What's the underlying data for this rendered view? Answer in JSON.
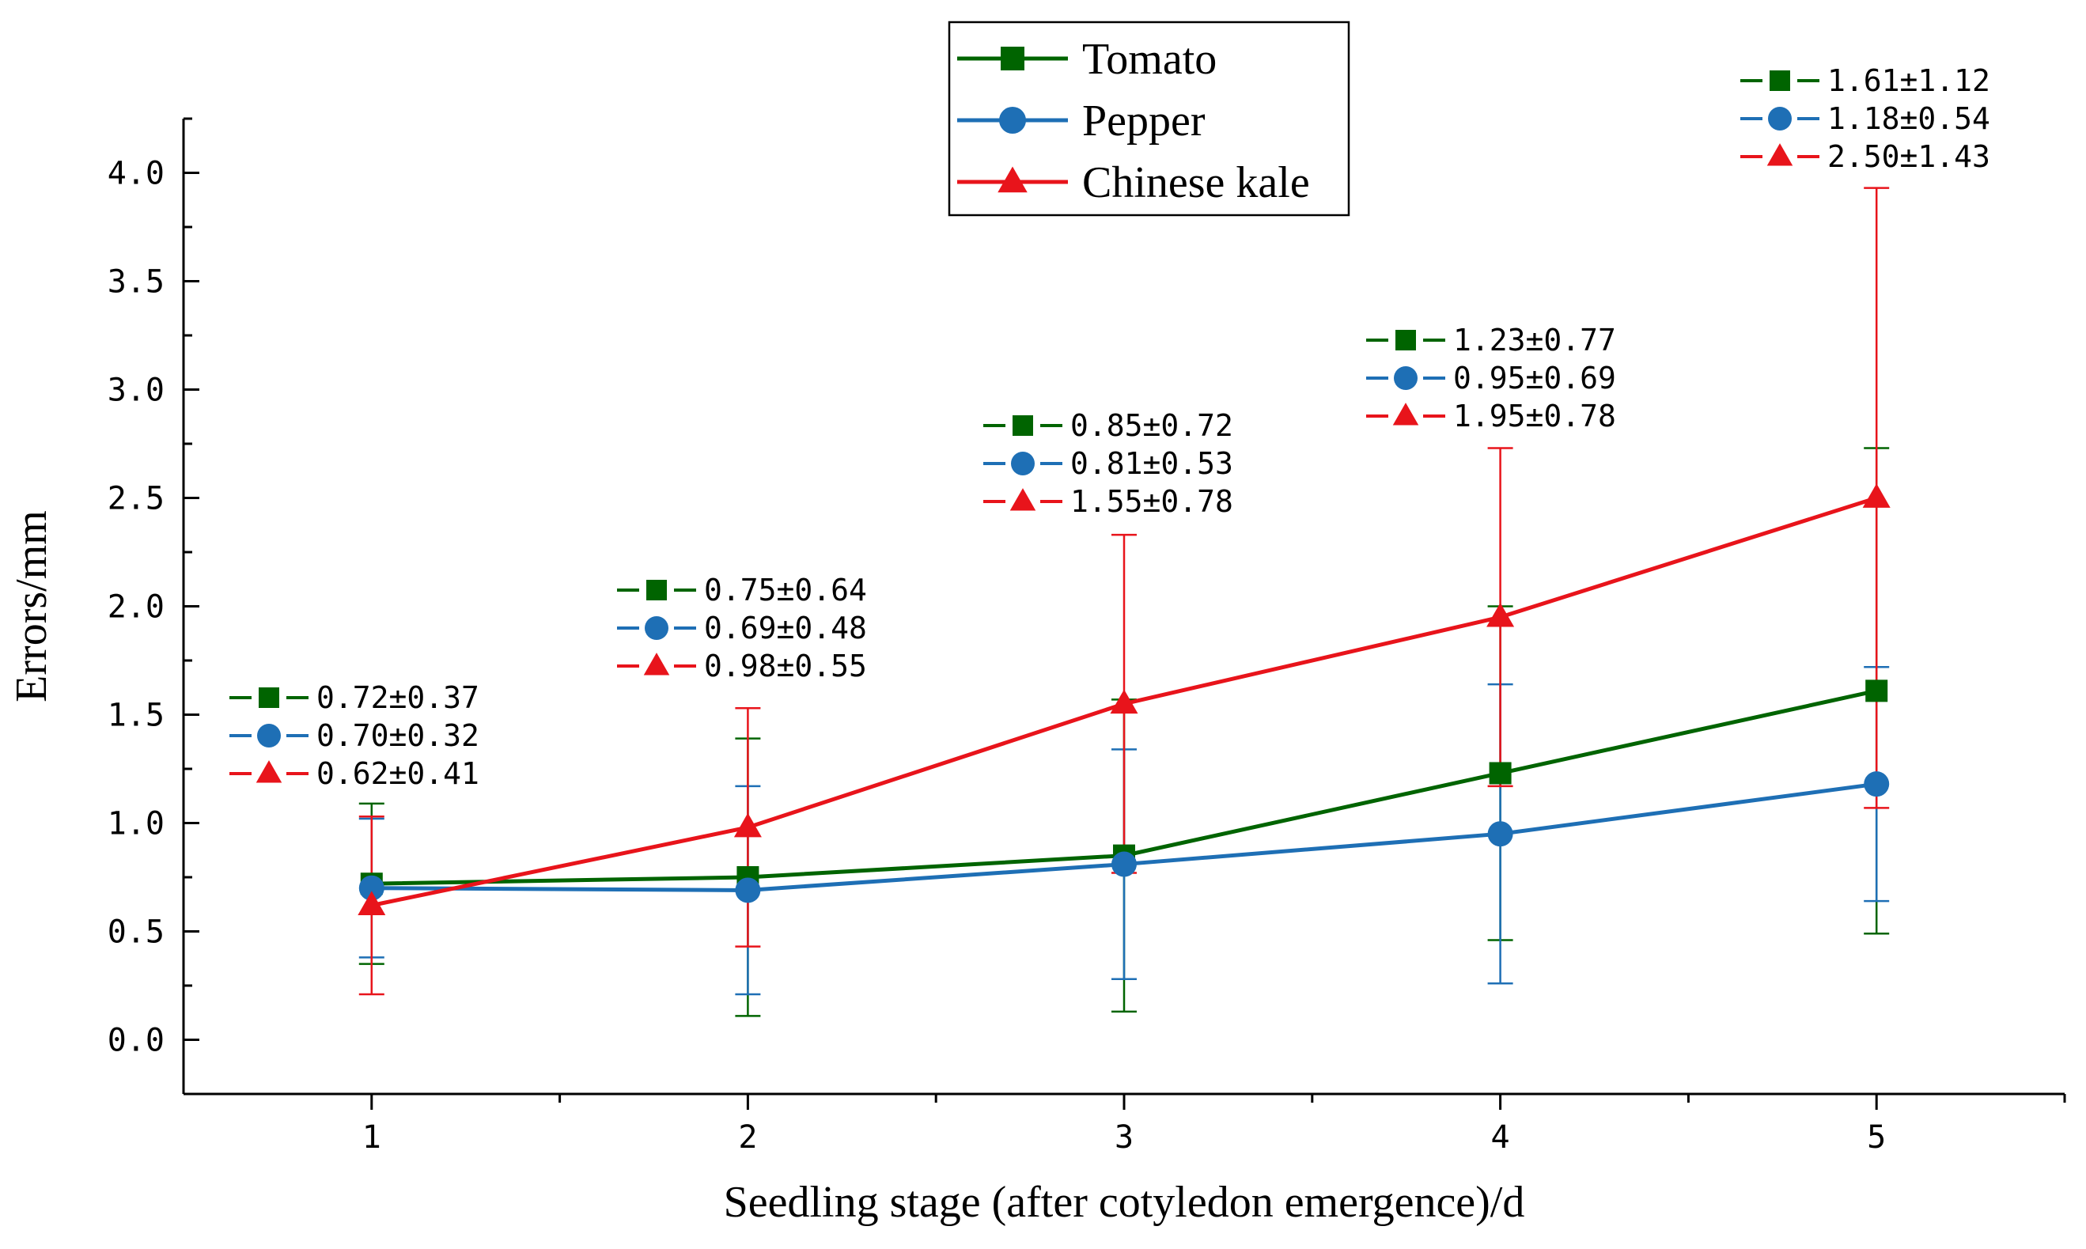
{
  "chart_data": {
    "type": "line",
    "title": "",
    "xlabel": "Seedling stage (after cotyledon emergence)/d",
    "ylabel": "Errors/mm",
    "x": [
      1,
      2,
      3,
      4,
      5
    ],
    "x_tick_labels": [
      "1",
      "2",
      "3",
      "4",
      "5"
    ],
    "xlim": [
      0.5,
      5.5
    ],
    "ylim": [
      -0.25,
      4.25
    ],
    "y_ticks": [
      0.0,
      0.5,
      1.0,
      1.5,
      2.0,
      2.5,
      3.0,
      3.5,
      4.0
    ],
    "y_tick_labels": [
      "0.0",
      "0.5",
      "1.0",
      "1.5",
      "2.0",
      "2.5",
      "3.0",
      "3.5",
      "4.0"
    ],
    "legend_position": "top-center",
    "series": [
      {
        "name": "Tomato",
        "color": "#006400",
        "marker": "square",
        "values": [
          0.72,
          0.75,
          0.85,
          1.23,
          1.61
        ],
        "errors": [
          0.37,
          0.64,
          0.72,
          0.77,
          1.12
        ]
      },
      {
        "name": "Pepper",
        "color": "#1E6FB5",
        "marker": "circle",
        "values": [
          0.7,
          0.69,
          0.81,
          0.95,
          1.18
        ],
        "errors": [
          0.32,
          0.48,
          0.53,
          0.69,
          0.54
        ]
      },
      {
        "name": "Chinese kale",
        "color": "#E8141B",
        "marker": "triangle",
        "values": [
          0.62,
          0.98,
          1.55,
          1.95,
          2.5
        ],
        "errors": [
          0.41,
          0.55,
          0.78,
          0.78,
          1.43
        ]
      }
    ],
    "annotations": [
      [
        "0.72±0.37",
        "0.70±0.32",
        "0.62±0.41"
      ],
      [
        "0.75±0.64",
        "0.69±0.48",
        "0.98±0.55"
      ],
      [
        "0.85±0.72",
        "0.81±0.53",
        "1.55±0.78"
      ],
      [
        "1.23±0.77",
        "0.95±0.69",
        "1.95±0.78"
      ],
      [
        "1.61±1.12",
        "1.18±0.54",
        "2.50±1.43"
      ]
    ]
  }
}
